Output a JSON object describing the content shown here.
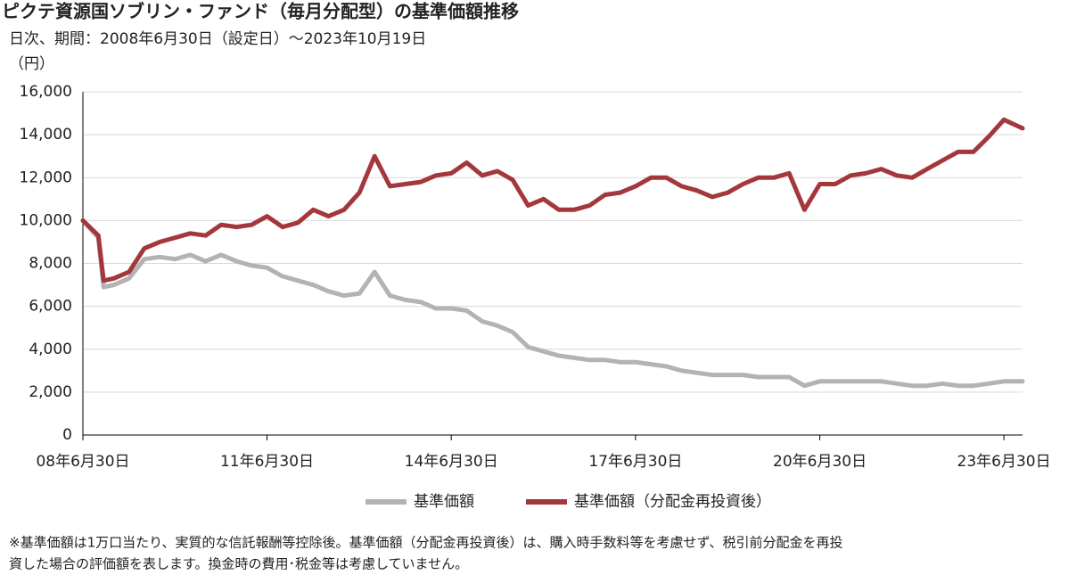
{
  "chart_data": {
    "type": "line",
    "title": "ピクテ資源国ソブリン・ファンド（毎月分配型）の基準価額推移",
    "subtitle": "日次、期間：2008年6月30日（設定日）～2023年10月19日",
    "y_label": "（円）",
    "footnote": [
      "※基準価額は1万口当たり、実質的な信託報酬等控除後。基準価額（分配金再投資後）は、購入時手数料等を考慮せず、税引前分配金を再投",
      "資した場合の評価額を表します。換金時の費用･税金等は考慮していません。"
    ],
    "x": [
      "2008-06-30",
      "2008-09-30",
      "2008-10-31",
      "2008-12-31",
      "2009-03-31",
      "2009-06-30",
      "2009-09-30",
      "2009-12-31",
      "2010-03-31",
      "2010-06-30",
      "2010-09-30",
      "2010-12-31",
      "2011-03-31",
      "2011-06-30",
      "2011-09-30",
      "2011-12-31",
      "2012-03-31",
      "2012-06-30",
      "2012-09-30",
      "2012-12-31",
      "2013-03-31",
      "2013-06-30",
      "2013-09-30",
      "2013-12-31",
      "2014-03-31",
      "2014-06-30",
      "2014-09-30",
      "2014-12-31",
      "2015-03-31",
      "2015-06-30",
      "2015-09-30",
      "2015-12-31",
      "2016-03-31",
      "2016-06-30",
      "2016-09-30",
      "2016-12-31",
      "2017-03-31",
      "2017-06-30",
      "2017-09-30",
      "2017-12-31",
      "2018-03-31",
      "2018-06-30",
      "2018-09-30",
      "2018-12-31",
      "2019-03-31",
      "2019-06-30",
      "2019-09-30",
      "2019-12-31",
      "2020-03-31",
      "2020-06-30",
      "2020-09-30",
      "2020-12-31",
      "2021-03-31",
      "2021-06-30",
      "2021-09-30",
      "2021-12-31",
      "2022-03-31",
      "2022-06-30",
      "2022-09-30",
      "2022-12-31",
      "2023-03-31",
      "2023-06-30",
      "2023-10-19"
    ],
    "series": [
      {
        "name": "基準価額",
        "color": "#b3b3b3",
        "values": [
          10000,
          9200,
          6900,
          7000,
          7300,
          8200,
          8300,
          8200,
          8400,
          8100,
          8400,
          8100,
          7900,
          7800,
          7400,
          7200,
          7000,
          6700,
          6500,
          6600,
          7600,
          6500,
          6300,
          6200,
          5900,
          5900,
          5800,
          5300,
          5100,
          4800,
          4100,
          3900,
          3700,
          3600,
          3500,
          3500,
          3400,
          3400,
          3300,
          3200,
          3000,
          2900,
          2800,
          2800,
          2800,
          2700,
          2700,
          2700,
          2300,
          2500,
          2500,
          2500,
          2500,
          2500,
          2400,
          2300,
          2300,
          2400,
          2300,
          2300,
          2400,
          2500,
          2500
        ]
      },
      {
        "name": "基準価額（分配金再投資後）",
        "color": "#a3373c",
        "values": [
          10000,
          9300,
          7200,
          7300,
          7600,
          8700,
          9000,
          9200,
          9400,
          9300,
          9800,
          9700,
          9800,
          10200,
          9700,
          9900,
          10500,
          10200,
          10500,
          11300,
          13000,
          11600,
          11700,
          11800,
          12100,
          12200,
          12700,
          12100,
          12300,
          11900,
          10700,
          11000,
          10500,
          10500,
          10700,
          11200,
          11300,
          11600,
          12000,
          12000,
          11600,
          11400,
          11100,
          11300,
          11700,
          12000,
          12000,
          12200,
          10500,
          11700,
          11700,
          12100,
          12200,
          12400,
          12100,
          12000,
          12400,
          12800,
          13200,
          13200,
          13900,
          14700,
          14300
        ]
      }
    ],
    "xlim": [
      "2008-06-30",
      "2023-10-19"
    ],
    "xticks": [
      {
        "value": "2008-06-30",
        "label": "08年6月30日"
      },
      {
        "value": "2011-06-30",
        "label": "11年6月30日"
      },
      {
        "value": "2014-06-30",
        "label": "14年6月30日"
      },
      {
        "value": "2017-06-30",
        "label": "17年6月30日"
      },
      {
        "value": "2020-06-30",
        "label": "20年6月30日"
      },
      {
        "value": "2023-06-30",
        "label": "23年6月30日"
      }
    ],
    "ylim": [
      0,
      16000
    ],
    "yticks": [
      0,
      {
        "value": 2000,
        "label": "2,000"
      },
      {
        "value": 4000,
        "label": "4,000"
      },
      {
        "value": 6000,
        "label": "6,000"
      },
      {
        "value": 8000,
        "label": "8,000"
      },
      {
        "value": 10000,
        "label": "10,000"
      },
      {
        "value": 12000,
        "label": "12,000"
      },
      {
        "value": 14000,
        "label": "14,000"
      },
      {
        "value": 16000,
        "label": "16,000"
      }
    ],
    "grid": true
  }
}
